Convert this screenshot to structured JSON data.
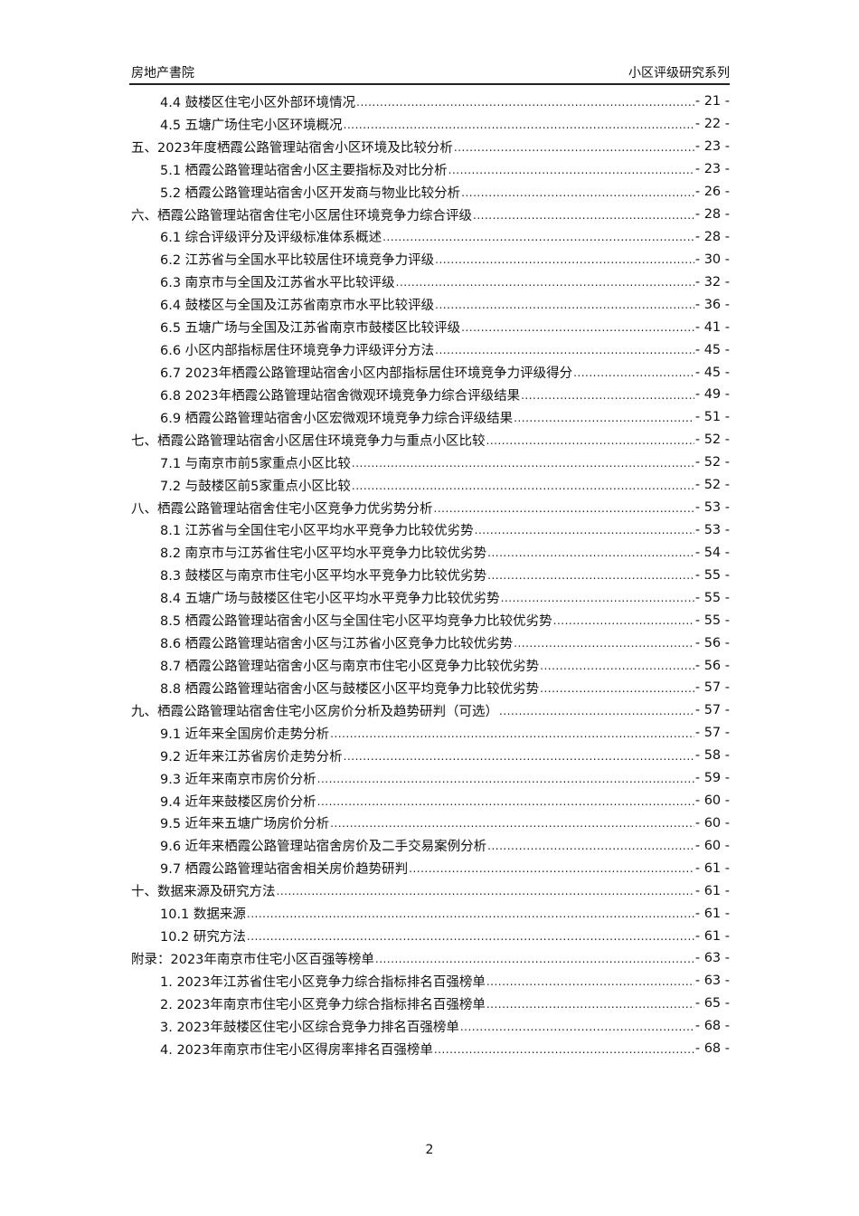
{
  "header": {
    "left": "房地产書院",
    "right": "小区评级研究系列"
  },
  "toc": [
    {
      "level": 2,
      "title": "4.4 鼓楼区住宅小区外部环境情况",
      "page": "- 21 -"
    },
    {
      "level": 2,
      "title": "4.5 五塘广场住宅小区环境概况",
      "page": "- 22 -"
    },
    {
      "level": 1,
      "title": "五、2023年度栖霞公路管理站宿舍小区环境及比较分析",
      "page": "- 23 -"
    },
    {
      "level": 2,
      "title": "5.1 栖霞公路管理站宿舍小区主要指标及对比分析",
      "page": "- 23 -"
    },
    {
      "level": 2,
      "title": "5.2 栖霞公路管理站宿舍小区开发商与物业比较分析",
      "page": "- 26 -"
    },
    {
      "level": 1,
      "title": "六、栖霞公路管理站宿舍住宅小区居住环境竞争力综合评级",
      "page": "- 28 -"
    },
    {
      "level": 2,
      "title": "6.1 综合评级评分及评级标准体系概述",
      "page": "- 28 -"
    },
    {
      "level": 2,
      "title": "6.2 江苏省与全国水平比较居住环境竞争力评级",
      "page": "- 30 -"
    },
    {
      "level": 2,
      "title": "6.3 南京市与全国及江苏省水平比较评级",
      "page": "- 32 -"
    },
    {
      "level": 2,
      "title": "6.4 鼓楼区与全国及江苏省南京市水平比较评级",
      "page": "- 36 -"
    },
    {
      "level": 2,
      "title": "6.5 五塘广场与全国及江苏省南京市鼓楼区比较评级",
      "page": "- 41 -"
    },
    {
      "level": 2,
      "title": "6.6 小区内部指标居住环境竞争力评级评分方法",
      "page": "- 45 -"
    },
    {
      "level": 2,
      "title": "6.7 2023年栖霞公路管理站宿舍小区内部指标居住环境竞争力评级得分",
      "page": "- 45 -"
    },
    {
      "level": 2,
      "title": "6.8 2023年栖霞公路管理站宿舍微观环境竞争力综合评级结果",
      "page": "- 49 -"
    },
    {
      "level": 2,
      "title": "6.9 栖霞公路管理站宿舍小区宏微观环境竞争力综合评级结果",
      "page": "- 51 -"
    },
    {
      "level": 1,
      "title": "七、栖霞公路管理站宿舍小区居住环境竞争力与重点小区比较",
      "page": "- 52 -"
    },
    {
      "level": 2,
      "title": "7.1 与南京市前5家重点小区比较",
      "page": "- 52 -"
    },
    {
      "level": 2,
      "title": "7.2 与鼓楼区前5家重点小区比较",
      "page": "- 52 -"
    },
    {
      "level": 1,
      "title": "八、栖霞公路管理站宿舍住宅小区竞争力优劣势分析",
      "page": "- 53 -"
    },
    {
      "level": 2,
      "title": "8.1 江苏省与全国住宅小区平均水平竞争力比较优劣势",
      "page": "- 53 -"
    },
    {
      "level": 2,
      "title": "8.2 南京市与江苏省住宅小区平均水平竞争力比较优劣势",
      "page": "- 54 -"
    },
    {
      "level": 2,
      "title": "8.3 鼓楼区与南京市住宅小区平均水平竞争力比较优劣势",
      "page": "- 55 -"
    },
    {
      "level": 2,
      "title": "8.4 五塘广场与鼓楼区住宅小区平均水平竞争力比较优劣势",
      "page": "- 55 -"
    },
    {
      "level": 2,
      "title": "8.5 栖霞公路管理站宿舍小区与全国住宅小区平均竞争力比较优劣势",
      "page": "- 55 -"
    },
    {
      "level": 2,
      "title": "8.6 栖霞公路管理站宿舍小区与江苏省小区竞争力比较优劣势",
      "page": "- 56 -"
    },
    {
      "level": 2,
      "title": "8.7 栖霞公路管理站宿舍小区与南京市住宅小区竞争力比较优劣势",
      "page": "- 56 -"
    },
    {
      "level": 2,
      "title": "8.8 栖霞公路管理站宿舍小区与鼓楼区小区平均竞争力比较优劣势",
      "page": "- 57 -"
    },
    {
      "level": 1,
      "title": "九、栖霞公路管理站宿舍住宅小区房价分析及趋势研判（可选）",
      "page": "- 57 -"
    },
    {
      "level": 2,
      "title": "9.1 近年来全国房价走势分析",
      "page": "- 57 -"
    },
    {
      "level": 2,
      "title": "9.2 近年来江苏省房价走势分析",
      "page": "- 58 -"
    },
    {
      "level": 2,
      "title": "9.3 近年来南京市房价分析",
      "page": "- 59 -"
    },
    {
      "level": 2,
      "title": "9.4 近年来鼓楼区房价分析",
      "page": "- 60 -"
    },
    {
      "level": 2,
      "title": "9.5 近年来五塘广场房价分析",
      "page": "- 60 -"
    },
    {
      "level": 2,
      "title": "9.6 近年来栖霞公路管理站宿舍房价及二手交易案例分析",
      "page": "- 60 -"
    },
    {
      "level": 2,
      "title": "9.7 栖霞公路管理站宿舍相关房价趋势研判",
      "page": "- 61 -"
    },
    {
      "level": 1,
      "title": "十、数据来源及研究方法",
      "page": "- 61 -"
    },
    {
      "level": 2,
      "title": "10.1 数据来源",
      "page": "- 61 -"
    },
    {
      "level": 2,
      "title": "10.2 研究方法",
      "page": "- 61 -"
    },
    {
      "level": 1,
      "title": "附录：2023年南京市住宅小区百强等榜单",
      "page": "- 63 -"
    },
    {
      "level": 2,
      "title": "1. 2023年江苏省住宅小区竞争力综合指标排名百强榜单",
      "page": "- 63 -"
    },
    {
      "level": 2,
      "title": "2. 2023年南京市住宅小区竞争力综合指标排名百强榜单",
      "page": "- 65 -"
    },
    {
      "level": 2,
      "title": "3. 2023年鼓楼区住宅小区综合竞争力排名百强榜单",
      "page": "- 68 -"
    },
    {
      "level": 2,
      "title": "4. 2023年南京市住宅小区得房率排名百强榜单",
      "page": "- 68 -"
    }
  ],
  "footer": {
    "page_number": "2"
  }
}
